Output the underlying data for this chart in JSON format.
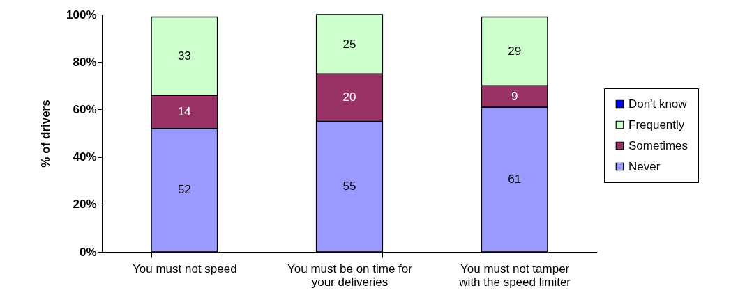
{
  "chart_data": {
    "type": "bar",
    "stacked": true,
    "ylabel": "% of drivers",
    "categories": [
      "You must not speed",
      "You must be on time for your deliveries",
      "You must not tamper with the speed limiter"
    ],
    "series": [
      {
        "name": "Never",
        "color": "#9999ff",
        "values": [
          52,
          55,
          61
        ],
        "value_labels": [
          "52",
          "55",
          "61"
        ]
      },
      {
        "name": "Sometimes",
        "color": "#993366",
        "values": [
          14,
          20,
          9
        ],
        "value_labels": [
          "14",
          "20",
          "9"
        ]
      },
      {
        "name": "Frequently",
        "color": "#ccffcc",
        "values": [
          33,
          25,
          29
        ],
        "value_labels": [
          "33",
          "25",
          "29"
        ]
      },
      {
        "name": "Don't know",
        "color": "#0000ff",
        "values": [
          null,
          null,
          null
        ]
      }
    ],
    "ylim": [
      0,
      100
    ],
    "yticks": [
      {
        "value": 0,
        "label": "0%"
      },
      {
        "value": 20,
        "label": "20%"
      },
      {
        "value": 40,
        "label": "40%"
      },
      {
        "value": 60,
        "label": "60%"
      },
      {
        "value": 80,
        "label": "80%"
      },
      {
        "value": 100,
        "label": "100%"
      }
    ],
    "grid": false,
    "legend": "right"
  }
}
